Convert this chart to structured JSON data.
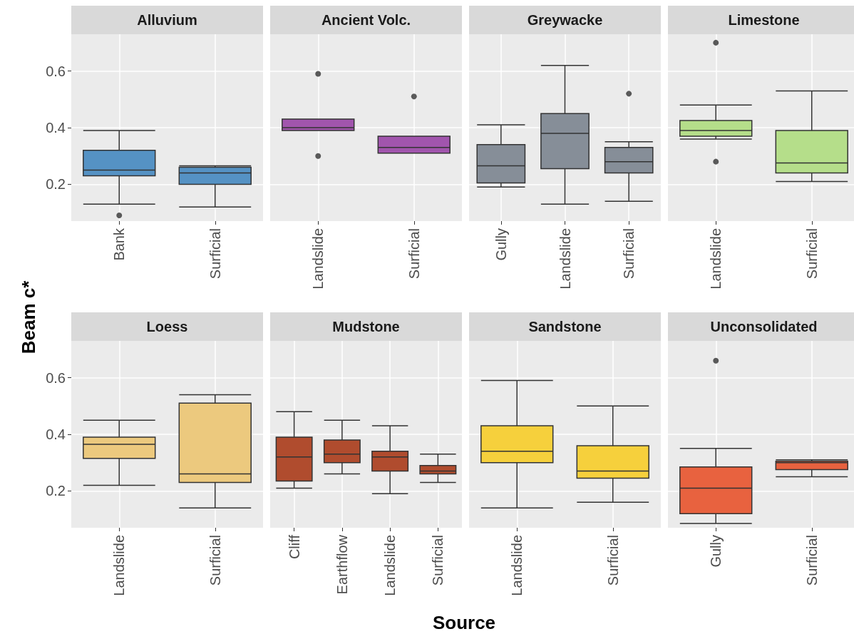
{
  "chart_data": [
    {
      "type": "box",
      "title": "Alluvium",
      "ylabel": "Beam c*",
      "categories": [
        "Bank",
        "Surficial"
      ],
      "color": "#5592c4",
      "ylim": [
        0.07,
        0.73
      ],
      "yticks": [
        0.2,
        0.4,
        0.6
      ],
      "grid": true,
      "boxes": [
        {
          "low": 0.13,
          "q1": 0.23,
          "median": 0.25,
          "q3": 0.32,
          "high": 0.39,
          "outliers": [
            0.09
          ]
        },
        {
          "low": 0.12,
          "q1": 0.2,
          "median": 0.24,
          "q3": 0.26,
          "high": 0.265
        }
      ]
    },
    {
      "type": "box",
      "title": "Ancient Volc.",
      "categories": [
        "Landslide",
        "Surficial"
      ],
      "color": "#a155ad",
      "ylim": [
        0.07,
        0.73
      ],
      "yticks": [
        0.2,
        0.4,
        0.6
      ],
      "grid": true,
      "tick_labels": "x",
      "boxes": [
        {
          "low": 0.39,
          "q1": 0.39,
          "median": 0.4,
          "q3": 0.43,
          "high": 0.43,
          "outliers": [
            0.59,
            0.3
          ]
        },
        {
          "low": 0.31,
          "q1": 0.31,
          "median": 0.33,
          "q3": 0.37,
          "high": 0.37,
          "outliers": [
            0.51
          ]
        }
      ]
    },
    {
      "type": "box",
      "title": "Greywacke",
      "categories": [
        "Gully",
        "Landslide",
        "Surficial"
      ],
      "color": "#868e98",
      "ylim": [
        0.07,
        0.73
      ],
      "yticks": [
        0.2,
        0.4,
        0.6
      ],
      "grid": true,
      "tick_labels": "x",
      "boxes": [
        {
          "low": 0.19,
          "q1": 0.205,
          "median": 0.265,
          "q3": 0.34,
          "high": 0.41
        },
        {
          "low": 0.13,
          "q1": 0.255,
          "median": 0.38,
          "q3": 0.45,
          "high": 0.62
        },
        {
          "low": 0.14,
          "q1": 0.24,
          "median": 0.28,
          "q3": 0.33,
          "high": 0.35,
          "outliers": [
            0.52
          ]
        }
      ]
    },
    {
      "type": "box",
      "title": "Limestone",
      "categories": [
        "Landslide",
        "Surficial"
      ],
      "color": "#b5de8a",
      "ylim": [
        0.07,
        0.73
      ],
      "yticks": [
        0.2,
        0.4,
        0.6
      ],
      "grid": true,
      "tick_labels": "x",
      "boxes": [
        {
          "low": 0.36,
          "q1": 0.37,
          "median": 0.39,
          "q3": 0.425,
          "high": 0.48,
          "outliers": [
            0.7,
            0.28
          ]
        },
        {
          "low": 0.21,
          "q1": 0.24,
          "median": 0.275,
          "q3": 0.39,
          "high": 0.53
        }
      ]
    },
    {
      "type": "box",
      "title": "Loess",
      "categories": [
        "Landslide",
        "Surficial"
      ],
      "color": "#ecc97e",
      "ylim": [
        0.07,
        0.73
      ],
      "yticks": [
        0.2,
        0.4,
        0.6
      ],
      "grid": true,
      "boxes": [
        {
          "low": 0.22,
          "q1": 0.315,
          "median": 0.365,
          "q3": 0.39,
          "high": 0.45
        },
        {
          "low": 0.14,
          "q1": 0.23,
          "median": 0.26,
          "q3": 0.51,
          "high": 0.54
        }
      ]
    },
    {
      "type": "box",
      "title": "Mudstone",
      "xlabel": "Source",
      "categories": [
        "Cliff",
        "Earthflow",
        "Landslide",
        "Surficial"
      ],
      "color": "#b04c2e",
      "ylim": [
        0.07,
        0.73
      ],
      "yticks": [
        0.2,
        0.4,
        0.6
      ],
      "grid": true,
      "tick_labels": "x",
      "boxes": [
        {
          "low": 0.21,
          "q1": 0.235,
          "median": 0.32,
          "q3": 0.39,
          "high": 0.48
        },
        {
          "low": 0.26,
          "q1": 0.3,
          "median": 0.33,
          "q3": 0.38,
          "high": 0.45
        },
        {
          "low": 0.19,
          "q1": 0.27,
          "median": 0.32,
          "q3": 0.34,
          "high": 0.43
        },
        {
          "low": 0.23,
          "q1": 0.26,
          "median": 0.27,
          "q3": 0.29,
          "high": 0.33
        }
      ]
    },
    {
      "type": "box",
      "title": "Sandstone",
      "categories": [
        "Landslide",
        "Surficial"
      ],
      "color": "#f6d03c",
      "ylim": [
        0.07,
        0.73
      ],
      "yticks": [
        0.2,
        0.4,
        0.6
      ],
      "grid": true,
      "tick_labels": "x",
      "boxes": [
        {
          "low": 0.14,
          "q1": 0.3,
          "median": 0.34,
          "q3": 0.43,
          "high": 0.59
        },
        {
          "low": 0.16,
          "q1": 0.245,
          "median": 0.27,
          "q3": 0.36,
          "high": 0.5
        }
      ]
    },
    {
      "type": "box",
      "title": "Unconsolidated",
      "categories": [
        "Gully",
        "Surficial"
      ],
      "color": "#e8623f",
      "ylim": [
        0.07,
        0.73
      ],
      "yticks": [
        0.2,
        0.4,
        0.6
      ],
      "grid": true,
      "tick_labels": "x",
      "boxes": [
        {
          "low": 0.085,
          "q1": 0.12,
          "median": 0.21,
          "q3": 0.285,
          "high": 0.35,
          "outliers": [
            0.66
          ]
        },
        {
          "low": 0.25,
          "q1": 0.275,
          "median": 0.3,
          "q3": 0.305,
          "high": 0.31
        }
      ]
    }
  ]
}
